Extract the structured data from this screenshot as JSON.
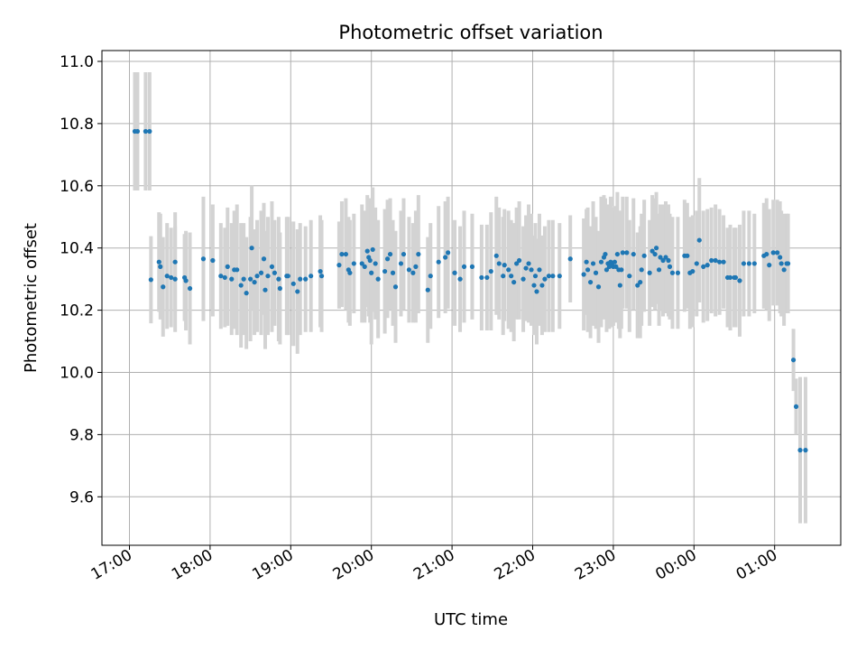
{
  "chart_data": {
    "type": "scatter",
    "title": "Photometric offset variation",
    "xlabel": "UTC time",
    "ylabel": "Photometric offset",
    "x_tick_labels": [
      "17:00",
      "18:00",
      "19:00",
      "20:00",
      "21:00",
      "22:00",
      "23:00",
      "00:00",
      "01:00"
    ],
    "y_tick_labels": [
      "9.6",
      "9.8",
      "10.0",
      "10.2",
      "10.4",
      "10.6",
      "10.8",
      "11.0"
    ],
    "grid": true,
    "point_color": "#1f77b4",
    "errorbar_color": "#d3d3d3",
    "points": [
      [
        "17:04",
        10.775,
        0.19
      ],
      [
        "17:06",
        10.775,
        0.19
      ],
      [
        "17:12",
        10.775,
        0.19
      ],
      [
        "17:15",
        10.775,
        0.19
      ],
      [
        "17:16",
        10.298,
        0.14
      ],
      [
        "17:22",
        10.355,
        0.16
      ],
      [
        "17:23",
        10.34,
        0.17
      ],
      [
        "17:25",
        10.275,
        0.16
      ],
      [
        "17:28",
        10.31,
        0.17
      ],
      [
        "17:31",
        10.305,
        0.16
      ],
      [
        "17:34",
        10.355,
        0.16
      ],
      [
        "17:34",
        10.3,
        0.17
      ],
      [
        "17:41",
        10.305,
        0.14
      ],
      [
        "17:42",
        10.295,
        0.16
      ],
      [
        "17:45",
        10.27,
        0.18
      ],
      [
        "17:55",
        10.365,
        0.2
      ],
      [
        "18:02",
        10.36,
        0.18
      ],
      [
        "18:08",
        10.31,
        0.17
      ],
      [
        "18:11",
        10.305,
        0.16
      ],
      [
        "18:13",
        10.34,
        0.19
      ],
      [
        "18:16",
        10.3,
        0.18
      ],
      [
        "18:18",
        10.33,
        0.19
      ],
      [
        "18:20",
        10.33,
        0.21
      ],
      [
        "18:23",
        10.28,
        0.2
      ],
      [
        "18:25",
        10.3,
        0.18
      ],
      [
        "18:27",
        10.255,
        0.18
      ],
      [
        "18:30",
        10.3,
        0.2
      ],
      [
        "18:31",
        10.4,
        0.2
      ],
      [
        "18:33",
        10.29,
        0.17
      ],
      [
        "18:35",
        10.31,
        0.18
      ],
      [
        "18:38",
        10.32,
        0.2
      ],
      [
        "18:40",
        10.365,
        0.18
      ],
      [
        "18:41",
        10.265,
        0.19
      ],
      [
        "18:43",
        10.31,
        0.19
      ],
      [
        "18:46",
        10.34,
        0.21
      ],
      [
        "18:48",
        10.32,
        0.17
      ],
      [
        "18:51",
        10.3,
        0.2
      ],
      [
        "18:52",
        10.27,
        0.18
      ],
      [
        "18:57",
        10.31,
        0.19
      ],
      [
        "18:58",
        10.31,
        0.19
      ],
      [
        "19:02",
        10.285,
        0.2
      ],
      [
        "19:05",
        10.26,
        0.2
      ],
      [
        "19:07",
        10.3,
        0.18
      ],
      [
        "19:11",
        10.3,
        0.17
      ],
      [
        "19:15",
        10.31,
        0.18
      ],
      [
        "19:22",
        10.325,
        0.18
      ],
      [
        "19:23",
        10.31,
        0.18
      ],
      [
        "19:36",
        10.345,
        0.14
      ],
      [
        "19:38",
        10.38,
        0.17
      ],
      [
        "19:41",
        10.38,
        0.18
      ],
      [
        "19:43",
        10.33,
        0.17
      ],
      [
        "19:44",
        10.32,
        0.17
      ],
      [
        "19:47",
        10.35,
        0.16
      ],
      [
        "19:53",
        10.35,
        0.19
      ],
      [
        "19:55",
        10.34,
        0.18
      ],
      [
        "19:57",
        10.39,
        0.18
      ],
      [
        "19:58",
        10.37,
        0.19
      ],
      [
        "19:59",
        10.36,
        0.2
      ],
      [
        "20:00",
        10.32,
        0.23
      ],
      [
        "20:01",
        10.395,
        0.2
      ],
      [
        "20:03",
        10.35,
        0.18
      ],
      [
        "20:05",
        10.3,
        0.19
      ],
      [
        "20:10",
        10.325,
        0.2
      ],
      [
        "20:12",
        10.365,
        0.19
      ],
      [
        "20:14",
        10.38,
        0.18
      ],
      [
        "20:16",
        10.32,
        0.17
      ],
      [
        "20:18",
        10.275,
        0.18
      ],
      [
        "20:22",
        10.35,
        0.17
      ],
      [
        "20:24",
        10.38,
        0.18
      ],
      [
        "20:28",
        10.33,
        0.17
      ],
      [
        "20:31",
        10.32,
        0.16
      ],
      [
        "20:33",
        10.34,
        0.18
      ],
      [
        "20:35",
        10.38,
        0.19
      ],
      [
        "20:42",
        10.265,
        0.17
      ],
      [
        "20:44",
        10.31,
        0.17
      ],
      [
        "20:50",
        10.355,
        0.18
      ],
      [
        "20:55",
        10.37,
        0.18
      ],
      [
        "20:57",
        10.385,
        0.18
      ],
      [
        "21:02",
        10.32,
        0.17
      ],
      [
        "21:06",
        10.3,
        0.17
      ],
      [
        "21:09",
        10.34,
        0.18
      ],
      [
        "21:15",
        10.34,
        0.17
      ],
      [
        "21:22",
        10.305,
        0.17
      ],
      [
        "21:26",
        10.305,
        0.17
      ],
      [
        "21:29",
        10.325,
        0.19
      ],
      [
        "21:33",
        10.375,
        0.19
      ],
      [
        "21:35",
        10.35,
        0.18
      ],
      [
        "21:38",
        10.31,
        0.19
      ],
      [
        "21:39",
        10.345,
        0.18
      ],
      [
        "21:42",
        10.33,
        0.19
      ],
      [
        "21:44",
        10.31,
        0.18
      ],
      [
        "21:46",
        10.29,
        0.19
      ],
      [
        "21:48",
        10.35,
        0.18
      ],
      [
        "21:50",
        10.36,
        0.19
      ],
      [
        "21:53",
        10.3,
        0.17
      ],
      [
        "21:55",
        10.335,
        0.17
      ],
      [
        "21:57",
        10.35,
        0.19
      ],
      [
        "21:59",
        10.33,
        0.18
      ],
      [
        "22:01",
        10.28,
        0.16
      ],
      [
        "22:02",
        10.31,
        0.17
      ],
      [
        "22:03",
        10.26,
        0.17
      ],
      [
        "22:05",
        10.33,
        0.18
      ],
      [
        "22:07",
        10.28,
        0.16
      ],
      [
        "22:09",
        10.3,
        0.17
      ],
      [
        "22:12",
        10.31,
        0.18
      ],
      [
        "22:15",
        10.31,
        0.18
      ],
      [
        "22:20",
        10.31,
        0.17
      ],
      [
        "22:28",
        10.365,
        0.14
      ],
      [
        "22:38",
        10.315,
        0.18
      ],
      [
        "22:40",
        10.355,
        0.17
      ],
      [
        "22:41",
        10.33,
        0.2
      ],
      [
        "22:43",
        10.29,
        0.18
      ],
      [
        "22:45",
        10.35,
        0.2
      ],
      [
        "22:47",
        10.32,
        0.18
      ],
      [
        "22:49",
        10.275,
        0.18
      ],
      [
        "22:51",
        10.355,
        0.21
      ],
      [
        "22:53",
        10.37,
        0.2
      ],
      [
        "22:54",
        10.38,
        0.18
      ],
      [
        "22:55",
        10.33,
        0.2
      ],
      [
        "22:56",
        10.35,
        0.19
      ],
      [
        "22:57",
        10.34,
        0.2
      ],
      [
        "22:58",
        10.355,
        0.21
      ],
      [
        "22:59",
        10.35,
        0.18
      ],
      [
        "23:00",
        10.34,
        0.19
      ],
      [
        "23:01",
        10.355,
        0.18
      ],
      [
        "23:02",
        10.34,
        0.18
      ],
      [
        "23:03",
        10.38,
        0.2
      ],
      [
        "23:04",
        10.33,
        0.19
      ],
      [
        "23:05",
        10.28,
        0.17
      ],
      [
        "23:06",
        10.33,
        0.19
      ],
      [
        "23:07",
        10.385,
        0.18
      ],
      [
        "23:10",
        10.385,
        0.18
      ],
      [
        "23:12",
        10.31,
        0.18
      ],
      [
        "23:15",
        10.38,
        0.18
      ],
      [
        "23:18",
        10.28,
        0.17
      ],
      [
        "23:20",
        10.29,
        0.18
      ],
      [
        "23:21",
        10.33,
        0.18
      ],
      [
        "23:23",
        10.375,
        0.18
      ],
      [
        "23:27",
        10.32,
        0.17
      ],
      [
        "23:29",
        10.39,
        0.18
      ],
      [
        "23:31",
        10.38,
        0.18
      ],
      [
        "23:32",
        10.4,
        0.18
      ],
      [
        "23:34",
        10.33,
        0.18
      ],
      [
        "23:35",
        10.37,
        0.17
      ],
      [
        "23:37",
        10.36,
        0.18
      ],
      [
        "23:39",
        10.37,
        0.18
      ],
      [
        "23:41",
        10.36,
        0.18
      ],
      [
        "23:42",
        10.34,
        0.17
      ],
      [
        "23:44",
        10.32,
        0.18
      ],
      [
        "23:48",
        10.32,
        0.18
      ],
      [
        "23:53",
        10.375,
        0.18
      ],
      [
        "23:55",
        10.375,
        0.17
      ],
      [
        "23:57",
        10.32,
        0.18
      ],
      [
        "23:59",
        10.325,
        0.18
      ],
      [
        "00:02",
        10.35,
        0.17
      ],
      [
        "00:04",
        10.425,
        0.2
      ],
      [
        "00:07",
        10.34,
        0.18
      ],
      [
        "00:10",
        10.345,
        0.18
      ],
      [
        "00:13",
        10.36,
        0.17
      ],
      [
        "00:16",
        10.36,
        0.18
      ],
      [
        "00:19",
        10.355,
        0.17
      ],
      [
        "00:22",
        10.355,
        0.15
      ],
      [
        "00:25",
        10.305,
        0.16
      ],
      [
        "00:27",
        10.305,
        0.17
      ],
      [
        "00:30",
        10.305,
        0.16
      ],
      [
        "00:31",
        10.305,
        0.16
      ],
      [
        "00:34",
        10.295,
        0.18
      ],
      [
        "00:37",
        10.35,
        0.17
      ],
      [
        "00:41",
        10.35,
        0.17
      ],
      [
        "00:45",
        10.35,
        0.16
      ],
      [
        "00:52",
        10.375,
        0.17
      ],
      [
        "00:54",
        10.38,
        0.18
      ],
      [
        "00:56",
        10.345,
        0.18
      ],
      [
        "00:59",
        10.385,
        0.17
      ],
      [
        "01:02",
        10.385,
        0.17
      ],
      [
        "01:04",
        10.37,
        0.18
      ],
      [
        "01:05",
        10.35,
        0.17
      ],
      [
        "01:07",
        10.33,
        0.18
      ],
      [
        "01:09",
        10.35,
        0.16
      ],
      [
        "01:10",
        10.35,
        0.16
      ],
      [
        "01:14",
        10.04,
        0.1
      ],
      [
        "01:16",
        9.89,
        0.09
      ],
      [
        "01:19",
        9.75,
        0.235
      ],
      [
        "01:23",
        9.75,
        0.235
      ]
    ]
  }
}
